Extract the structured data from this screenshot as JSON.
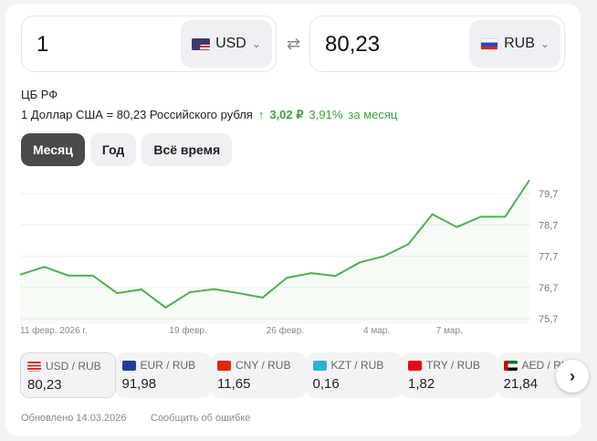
{
  "converter": {
    "from_amount": "1",
    "from_currency": "USD",
    "to_amount": "80,23",
    "to_currency": "RUB",
    "swap_icon": "swap-arrows-icon"
  },
  "source": "ЦБ РФ",
  "rate_text": "1 Доллар США = 80,23 Российского рубля",
  "change": {
    "arrow": "↑",
    "abs": "3,02 ₽",
    "pct": "3,91%",
    "period": "за месяц",
    "color": "#3ba43b"
  },
  "tabs": [
    {
      "label": "Месяц",
      "active": true
    },
    {
      "label": "Год"
    },
    {
      "label": "Всё время"
    }
  ],
  "chart_data": {
    "type": "line",
    "x_labels": [
      "11 февр. 2026 г.",
      "19 февр.",
      "26 февр.",
      "4 мар.",
      "7 мар."
    ],
    "x_label_index": [
      0,
      6,
      10,
      14,
      17
    ],
    "y_ticks": [
      "79,7",
      "78,7",
      "77,7",
      "76,7",
      "75,7"
    ],
    "y_tick_values": [
      79.7,
      78.7,
      77.7,
      76.7,
      75.7
    ],
    "values": [
      77.11,
      77.36,
      77.08,
      77.08,
      76.52,
      76.64,
      76.06,
      76.55,
      76.65,
      76.52,
      76.38,
      77.01,
      77.16,
      77.07,
      77.5,
      77.7,
      78.08,
      79.04,
      78.63,
      78.96,
      78.96,
      80.13
    ],
    "line_color": "#4caf50",
    "grid": true
  },
  "pairs": [
    {
      "label": "USD / RUB",
      "value": "80,23",
      "flag": "us"
    },
    {
      "label": "EUR / RUB",
      "value": "91,98",
      "flag": "eu"
    },
    {
      "label": "CNY / RUB",
      "value": "11,65",
      "flag": "cn"
    },
    {
      "label": "KZT / RUB",
      "value": "0,16",
      "flag": "kz"
    },
    {
      "label": "TRY / RUB",
      "value": "1,82",
      "flag": "tr"
    },
    {
      "label": "AED / RUB",
      "value": "21,84",
      "flag": "ae"
    }
  ],
  "next_icon": "›",
  "footer": {
    "updated": "Обновлено 14.03.2026",
    "report": "Сообщить об ошибке"
  }
}
